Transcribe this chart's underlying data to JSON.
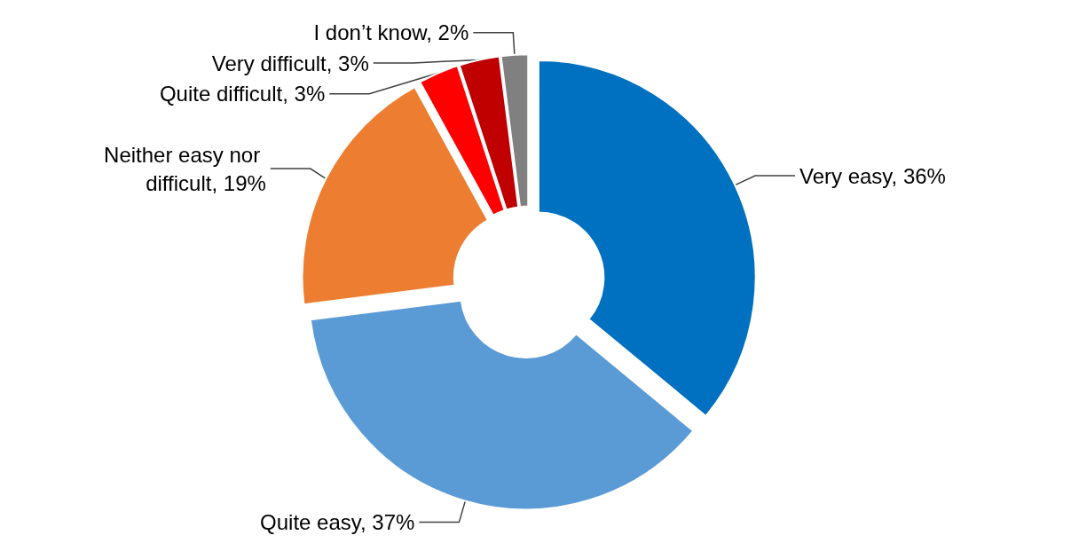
{
  "chart_data": {
    "type": "donut",
    "categories": [
      "Very easy",
      "Quite easy",
      "Neither easy nor difficult",
      "Quite difficult",
      "Very difficult",
      "I don’t know"
    ],
    "values": [
      36,
      37,
      19,
      3,
      3,
      2
    ],
    "value_labels": [
      "36%",
      "37%",
      "19%",
      "3%",
      "3%",
      "2%"
    ],
    "colors": [
      "#0070c0",
      "#5b9bd5",
      "#ed7d31",
      "#ff0000",
      "#c00000",
      "#808080"
    ],
    "legend": false
  }
}
